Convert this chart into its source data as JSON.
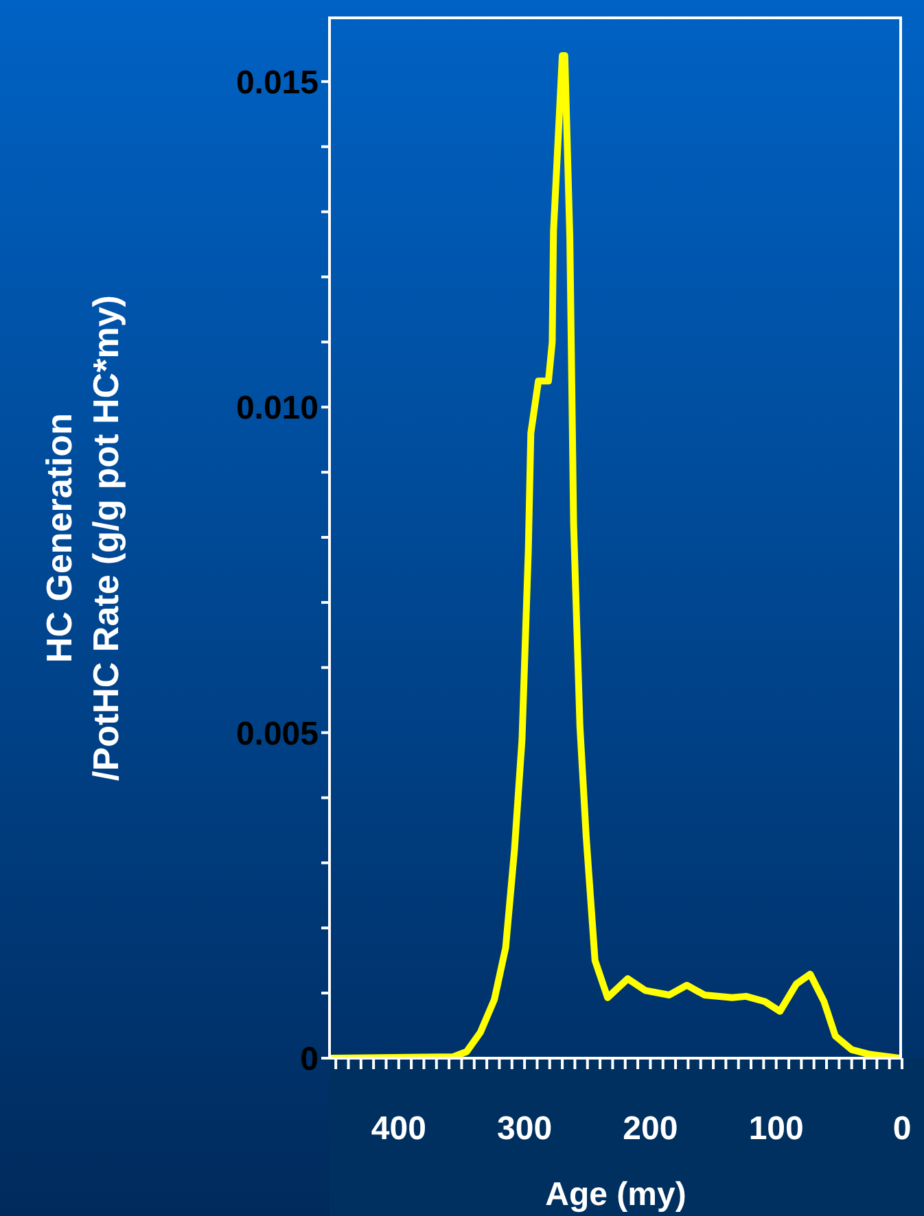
{
  "chart_data": {
    "type": "line",
    "xlabel": "Age (my)",
    "ylabel": "HC Generation\n/PotHC Rate (g/g pot HC*my)",
    "x": [
      455,
      357,
      346,
      335,
      324,
      315,
      308,
      302,
      297,
      295,
      289,
      281,
      278,
      277,
      270,
      268,
      264,
      261,
      256,
      251,
      244,
      234,
      218,
      204,
      185,
      171,
      157,
      135,
      124,
      109,
      97,
      84,
      73,
      62,
      53,
      40,
      26,
      2
    ],
    "series": [
      {
        "color": "#ffff00",
        "values": [
          0,
          2e-05,
          0.0001,
          0.0004,
          0.0009,
          0.0017,
          0.0032,
          0.0049,
          0.0078,
          0.0096,
          0.0104,
          0.0104,
          0.011,
          0.0127,
          0.0154,
          0.0154,
          0.0126,
          0.0082,
          0.0051,
          0.0034,
          0.0015,
          0.00093,
          0.00122,
          0.00104,
          0.00097,
          0.00112,
          0.00097,
          0.00093,
          0.00095,
          0.00087,
          0.00072,
          0.00114,
          0.00129,
          0.00087,
          0.00034,
          0.00013,
          6e-05,
          0
        ]
      }
    ],
    "xlim": [
      455,
      0
    ],
    "xticks": [
      {
        "value": 450,
        "label": null
      },
      {
        "value": 440,
        "label": null
      },
      {
        "value": 430,
        "label": null
      },
      {
        "value": 420,
        "label": null
      },
      {
        "value": 410,
        "label": null
      },
      400,
      {
        "value": 390,
        "label": null
      },
      {
        "value": 380,
        "label": null
      },
      {
        "value": 370,
        "label": null
      },
      {
        "value": 360,
        "label": null
      },
      {
        "value": 350,
        "label": null
      },
      {
        "value": 340,
        "label": null
      },
      {
        "value": 330,
        "label": null
      },
      {
        "value": 320,
        "label": null
      },
      {
        "value": 310,
        "label": null
      },
      300,
      {
        "value": 290,
        "label": null
      },
      {
        "value": 280,
        "label": null
      },
      {
        "value": 270,
        "label": null
      },
      {
        "value": 260,
        "label": null
      },
      {
        "value": 250,
        "label": null
      },
      {
        "value": 240,
        "label": null
      },
      {
        "value": 230,
        "label": null
      },
      {
        "value": 220,
        "label": null
      },
      {
        "value": 210,
        "label": null
      },
      200,
      {
        "value": 190,
        "label": null
      },
      {
        "value": 180,
        "label": null
      },
      {
        "value": 170,
        "label": null
      },
      {
        "value": 160,
        "label": null
      },
      {
        "value": 150,
        "label": null
      },
      {
        "value": 140,
        "label": null
      },
      {
        "value": 130,
        "label": null
      },
      {
        "value": 120,
        "label": null
      },
      {
        "value": 110,
        "label": null
      },
      100,
      {
        "value": 90,
        "label": null
      },
      {
        "value": 80,
        "label": null
      },
      {
        "value": 70,
        "label": null
      },
      {
        "value": 60,
        "label": null
      },
      {
        "value": 50,
        "label": null
      },
      {
        "value": 40,
        "label": null
      },
      {
        "value": 30,
        "label": null
      },
      {
        "value": 20,
        "label": null
      },
      {
        "value": 10,
        "label": null
      },
      0
    ],
    "ylim": [
      0,
      0.016
    ],
    "yticks": [
      0,
      {
        "value": 0.001,
        "label": null
      },
      {
        "value": 0.002,
        "label": null
      },
      {
        "value": 0.003,
        "label": null
      },
      {
        "value": 0.004,
        "label": null
      },
      0.005,
      {
        "value": 0.006,
        "label": null
      },
      {
        "value": 0.007,
        "label": null
      },
      {
        "value": 0.008,
        "label": null
      },
      {
        "value": 0.009,
        "label": null
      },
      {
        "value": 0.01,
        "label": "0.010"
      },
      {
        "value": 0.011,
        "label": null
      },
      {
        "value": 0.012,
        "label": null
      },
      {
        "value": 0.013,
        "label": null
      },
      {
        "value": 0.014,
        "label": null
      },
      0.015
    ],
    "grid": false,
    "legend": false,
    "marker": "none",
    "line_style": "solid"
  }
}
